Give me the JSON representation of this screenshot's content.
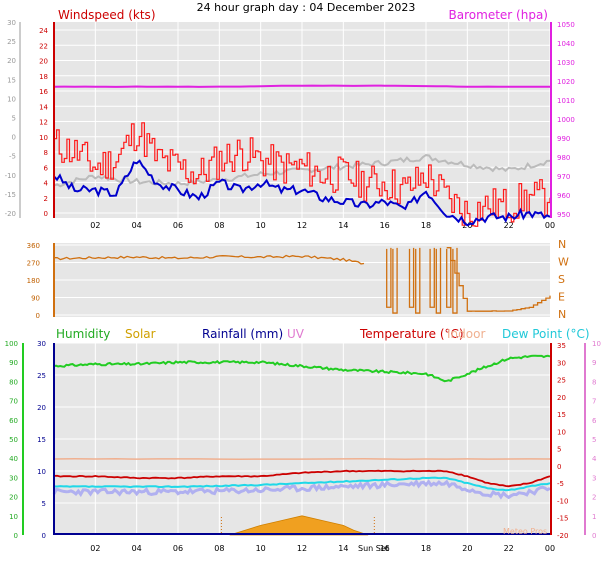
{
  "title": "24 hour graph day : 04 December 2023",
  "colors": {
    "windspeed": "#ff1a1a",
    "wind_avg": "#0000cc",
    "barometer": "#e020e0",
    "baro_line": "#bbbbbb",
    "direction": "#d07010",
    "humidity": "#22cc22",
    "solar": "#f0a020",
    "rainfall": "#000090",
    "uv": "#e07ad0",
    "temperature": "#cc0000",
    "indoor": "#f0b090",
    "dewpoint": "#20d8e8",
    "dew_fill": "#b0b0f0",
    "plot_bg": "#e6e6e6"
  },
  "panels": {
    "wind": {
      "label_left": "Windspeed (kts)",
      "label_right": "Barometer (hpa)",
      "y_left_ticks": [
        "24",
        "22",
        "20",
        "18",
        "16",
        "14",
        "12",
        "10",
        "8",
        "6",
        "4",
        "2",
        "0"
      ],
      "y_left_outer_ticks": [
        "30",
        "25",
        "20",
        "15",
        "10",
        "5",
        "0",
        "-5",
        "-10",
        "-15",
        "-20"
      ],
      "y_right_ticks": [
        "1050",
        "1040",
        "1030",
        "1020",
        "1010",
        "1000",
        "990",
        "980",
        "970",
        "960",
        "950"
      ],
      "x_ticks": [
        "02",
        "04",
        "06",
        "08",
        "10",
        "12",
        "14",
        "16",
        "18",
        "20",
        "22",
        "00"
      ]
    },
    "direction": {
      "y_left_ticks": [
        "360",
        "270",
        "180",
        "90",
        "0"
      ],
      "y_right_ticks": [
        "N",
        "W",
        "S",
        "E",
        "N"
      ]
    },
    "temp": {
      "legend": {
        "humidity": "Humidity",
        "solar": "Solar",
        "rainfall": "Rainfall (mm)",
        "uv": "UV",
        "temperature": "Temperature (°C)",
        "indoor": "Indoor",
        "dewpoint": "Dew Point (°C)"
      },
      "y_hum_ticks": [
        "100",
        "90",
        "80",
        "70",
        "60",
        "50",
        "40",
        "30",
        "20",
        "10",
        "0"
      ],
      "y_rain_ticks": [
        "30",
        "25",
        "20",
        "15",
        "10",
        "5",
        "0"
      ],
      "y_temp_ticks": [
        "35",
        "30",
        "25",
        "20",
        "15",
        "10",
        "5",
        "0",
        "-5",
        "-10",
        "-15",
        "-20"
      ],
      "y_uv_ticks": [
        "10",
        "9",
        "8",
        "7",
        "6",
        "5",
        "4",
        "3",
        "2",
        "1",
        "0"
      ],
      "x_ticks": [
        "02",
        "04",
        "06",
        "08",
        "10",
        "12",
        "14",
        "16",
        "18",
        "20",
        "22",
        "00"
      ],
      "sunset_label": "Sun Set",
      "footer_label": "Meteo Pros"
    }
  },
  "chart_data": [
    {
      "type": "line",
      "title": "24 hour graph day : 04 December 2023",
      "x_unit": "hours (from 00:00)",
      "ylabel": "Windspeed (kts)",
      "ylim": [
        0,
        25
      ],
      "y2label": "Barometer (hpa)",
      "y2lim": [
        950,
        1055
      ],
      "series": [
        {
          "name": "Barometer (hpa)",
          "axis": "right",
          "x": [
            0,
            4,
            8,
            12,
            16,
            20,
            24
          ],
          "values": [
            1017,
            1017,
            1017,
            1017.5,
            1017.5,
            1017,
            1017
          ]
        },
        {
          "name": "Windspeed (kts)",
          "axis": "left",
          "x": [
            0,
            1,
            2,
            3,
            4,
            5,
            6,
            7,
            8,
            9,
            10,
            11,
            12,
            13,
            14,
            15,
            16,
            17,
            18,
            19,
            20,
            21,
            22,
            23,
            24
          ],
          "values": [
            10,
            9,
            7,
            8,
            12,
            8,
            7,
            6,
            8,
            9,
            8,
            7,
            7,
            6,
            6,
            5,
            5,
            4,
            6,
            3,
            1,
            2,
            2,
            3,
            3
          ]
        },
        {
          "name": "Wind average",
          "axis": "left",
          "x": [
            0,
            1,
            2,
            3,
            4,
            5,
            6,
            7,
            8,
            9,
            10,
            11,
            12,
            13,
            14,
            15,
            16,
            17,
            18,
            19,
            20,
            21,
            22,
            23,
            24
          ],
          "values": [
            6,
            4,
            4,
            3.5,
            8,
            5,
            4,
            3,
            5,
            4,
            5,
            4,
            4,
            3,
            2.5,
            2,
            2.5,
            1.5,
            4,
            1,
            0,
            0.5,
            0.5,
            1,
            0.5
          ]
        },
        {
          "name": "Pressure trend",
          "axis": "right",
          "x": [
            0,
            2,
            4,
            6,
            8,
            10,
            12,
            14,
            16,
            18,
            20,
            22,
            24
          ],
          "values": [
            965,
            970,
            967,
            966,
            968,
            971,
            973,
            975,
            977,
            980,
            976,
            973,
            978
          ]
        }
      ]
    },
    {
      "type": "line",
      "x_unit": "hours (from 00:00)",
      "ylim": [
        0,
        360
      ],
      "series": [
        {
          "name": "Wind direction",
          "x": [
            0,
            2,
            4,
            6,
            8,
            10,
            12,
            14,
            15,
            16,
            17,
            18,
            19,
            20,
            21,
            22,
            23,
            24
          ],
          "values": [
            290,
            295,
            298,
            292,
            300,
            298,
            302,
            285,
            265,
            320,
            340,
            340,
            345,
            20,
            20,
            20,
            40,
            100
          ]
        }
      ]
    },
    {
      "type": "line",
      "x_unit": "hours (from 00:00)",
      "series": [
        {
          "name": "Humidity",
          "axis": "percent",
          "x": [
            0,
            2,
            4,
            6,
            8,
            10,
            12,
            14,
            16,
            18,
            19,
            20,
            22,
            23,
            24
          ],
          "values": [
            88,
            89,
            89,
            90,
            90,
            90,
            88,
            86,
            85,
            84,
            80,
            84,
            92,
            93,
            93
          ]
        },
        {
          "name": "Temperature (°C)",
          "axis": "temp",
          "x": [
            0,
            2,
            4,
            6,
            8,
            10,
            12,
            14,
            16,
            18,
            19,
            20,
            21,
            22,
            23,
            24
          ],
          "values": [
            -3,
            -3,
            -3.5,
            -3.5,
            -3,
            -3,
            -2,
            -1.5,
            -1.5,
            -1.5,
            -1.5,
            -3,
            -5,
            -6,
            -5,
            -3
          ]
        },
        {
          "name": "Dew Point (°C)",
          "axis": "temp",
          "x": [
            0,
            2,
            4,
            6,
            8,
            10,
            12,
            14,
            16,
            18,
            19,
            20,
            21,
            22,
            23,
            24
          ],
          "values": [
            -6,
            -6,
            -6,
            -6,
            -5.8,
            -5.5,
            -5,
            -4.5,
            -4,
            -3.5,
            -3.5,
            -5,
            -6.5,
            -7,
            -6,
            -5
          ]
        },
        {
          "name": "Indoor",
          "axis": "temp",
          "x": [
            0,
            24
          ],
          "values": [
            2,
            2
          ]
        },
        {
          "name": "Solar",
          "axis": "solar",
          "x": [
            8.5,
            10,
            11,
            12,
            13,
            14,
            14.5,
            15.2
          ],
          "values": [
            0,
            2,
            3,
            4,
            3,
            2,
            1,
            0
          ]
        }
      ]
    }
  ]
}
